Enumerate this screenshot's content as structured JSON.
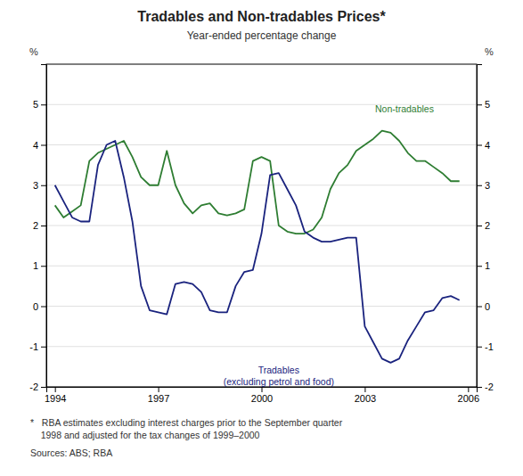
{
  "chart_data": {
    "type": "line",
    "title": "Tradables and Non-tradables Prices*",
    "subtitle": "Year-ended percentage change",
    "ylabel": "%",
    "y2label": "%",
    "footnotes": [
      "*   RBA estimates excluding interest charges prior to the September quarter",
      "    1998 and adjusted for the tax changes of 1999–2000",
      "Sources: ABS; RBA"
    ],
    "x": [
      1994.0,
      1994.25,
      1994.5,
      1994.75,
      1995.0,
      1995.25,
      1995.5,
      1995.75,
      1996.0,
      1996.25,
      1996.5,
      1996.75,
      1997.0,
      1997.25,
      1997.5,
      1997.75,
      1998.0,
      1998.25,
      1998.5,
      1998.75,
      1999.0,
      1999.25,
      1999.5,
      1999.75,
      2000.0,
      2000.25,
      2000.5,
      2000.75,
      2001.0,
      2001.25,
      2001.5,
      2001.75,
      2002.0,
      2002.25,
      2002.5,
      2002.75,
      2003.0,
      2003.25,
      2003.5,
      2003.75,
      2004.0,
      2004.25,
      2004.5,
      2004.75,
      2005.0,
      2005.25,
      2005.5,
      2005.75
    ],
    "series": [
      {
        "color": "#2e7d32",
        "values": [
          2.5,
          2.2,
          2.35,
          2.5,
          3.6,
          3.8,
          3.9,
          4.0,
          4.1,
          3.7,
          3.2,
          3.0,
          3.0,
          3.85,
          3.0,
          2.55,
          2.3,
          2.5,
          2.55,
          2.3,
          2.25,
          2.3,
          2.4,
          3.6,
          3.7,
          3.6,
          2.0,
          1.85,
          1.8,
          1.8,
          1.9,
          2.2,
          2.9,
          3.3,
          3.5,
          3.85,
          4.0,
          4.15,
          4.35,
          4.3,
          4.1,
          3.8,
          3.6,
          3.6,
          3.45,
          3.3,
          3.1,
          3.1
        ]
      },
      {
        "color": "#1a237e",
        "values": [
          3.0,
          2.6,
          2.2,
          2.1,
          2.1,
          3.5,
          4.0,
          4.1,
          3.2,
          2.1,
          0.5,
          -0.1,
          -0.15,
          -0.2,
          0.55,
          0.6,
          0.55,
          0.35,
          -0.1,
          -0.15,
          -0.15,
          0.5,
          0.85,
          0.9,
          1.8,
          3.25,
          3.3,
          2.9,
          2.5,
          1.85,
          1.7,
          1.6,
          1.6,
          1.65,
          1.7,
          1.7,
          -0.5,
          -0.9,
          -1.3,
          -1.4,
          -1.3,
          -0.85,
          -0.5,
          -0.15,
          -0.1,
          0.2,
          0.25,
          0.15
        ]
      }
    ],
    "annotations": [
      {
        "text": [
          "Non-tradables"
        ],
        "x": 2003.3,
        "y": 4.75,
        "color": "#2e7d32"
      },
      {
        "text": [
          "Tradables",
          "(excluding petrol and food)"
        ],
        "x": 2000.5,
        "y": -1.45,
        "color": "#1a237e"
      }
    ],
    "xlim": [
      1993.75,
      2006.25
    ],
    "xticks": [
      1994,
      1997,
      2000,
      2003,
      2006
    ],
    "ylim": [
      -2,
      6
    ],
    "yticks": [
      -2,
      -1,
      0,
      1,
      2,
      3,
      4,
      5
    ],
    "y2lim": [
      -2,
      6
    ],
    "y2ticks": [
      -2,
      -1,
      0,
      1,
      2,
      3,
      4,
      5
    ],
    "grid": true,
    "legend": false
  }
}
